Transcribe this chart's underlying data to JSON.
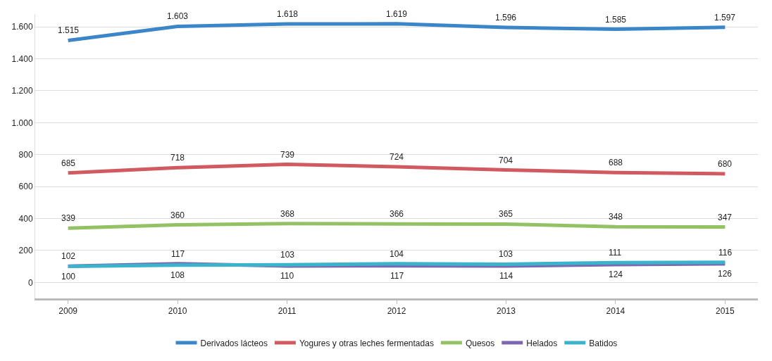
{
  "chart_data": {
    "type": "line",
    "categories": [
      "2009",
      "2010",
      "2011",
      "2012",
      "2013",
      "2014",
      "2015"
    ],
    "series": [
      {
        "name": "Derivados lácteos",
        "color": "#3a86c8",
        "values": [
          1515,
          1603,
          1618,
          1619,
          1596,
          1585,
          1597
        ],
        "value_labels": [
          "1.515",
          "1.603",
          "1.618",
          "1.619",
          "1.596",
          "1.585",
          "1.597"
        ]
      },
      {
        "name": "Yogures y otras leches fermentadas",
        "color": "#d05a5f",
        "values": [
          685,
          718,
          739,
          724,
          704,
          688,
          680
        ],
        "value_labels": [
          "685",
          "718",
          "739",
          "724",
          "704",
          "688",
          "680"
        ]
      },
      {
        "name": "Quesos",
        "color": "#93c265",
        "values": [
          339,
          360,
          368,
          366,
          365,
          348,
          347
        ],
        "value_labels": [
          "339",
          "360",
          "368",
          "366",
          "365",
          "348",
          "347"
        ]
      },
      {
        "name": "Helados",
        "color": "#7b68b0",
        "values": [
          102,
          117,
          103,
          104,
          103,
          111,
          116
        ],
        "value_labels": [
          "102",
          "117",
          "103",
          "104",
          "103",
          "111",
          "116"
        ]
      },
      {
        "name": "Batidos",
        "color": "#3bb3cc",
        "values": [
          100,
          108,
          110,
          117,
          114,
          124,
          126
        ],
        "value_labels": [
          "100",
          "108",
          "110",
          "117",
          "114",
          "124",
          "126"
        ]
      }
    ],
    "ylim": [
      -100,
      1680
    ],
    "yticks": [
      {
        "value": 0,
        "label": "0"
      },
      {
        "value": 200,
        "label": "200"
      },
      {
        "value": 400,
        "label": "400"
      },
      {
        "value": 600,
        "label": "600"
      },
      {
        "value": 800,
        "label": "800"
      },
      {
        "value": 1000,
        "label": "1.000"
      },
      {
        "value": 1200,
        "label": "1.200"
      },
      {
        "value": 1400,
        "label": "1.400"
      },
      {
        "value": 1600,
        "label": "1.600"
      }
    ],
    "grid": "y",
    "legend": "bottom",
    "marker": "none",
    "line_style": "solid"
  }
}
